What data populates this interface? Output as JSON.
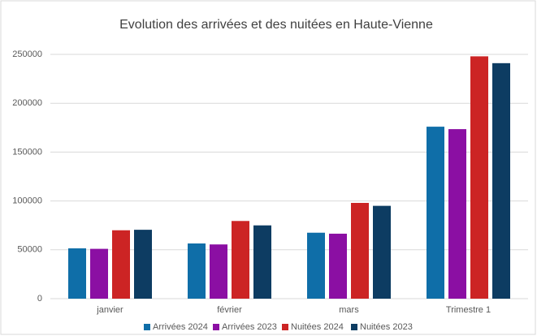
{
  "chart_data": {
    "type": "bar",
    "title": "Evolution des arrivées et des nuitées en Haute-Vienne",
    "categories": [
      "janvier",
      "février",
      "mars",
      "Trimestre 1"
    ],
    "series": [
      {
        "name": "Arrivées 2024",
        "color": "#0f6ea8",
        "values": [
          51500,
          56500,
          67500,
          176000
        ]
      },
      {
        "name": "Arrivées 2023",
        "color": "#8b0fa3",
        "values": [
          51000,
          55500,
          66500,
          173500
        ]
      },
      {
        "name": "Nuitées 2024",
        "color": "#cc2424",
        "values": [
          70000,
          79500,
          98000,
          248000
        ]
      },
      {
        "name": "Nuitées 2023",
        "color": "#0d3c62",
        "values": [
          70500,
          75000,
          95000,
          241000
        ]
      }
    ],
    "ylim": [
      0,
      250000
    ],
    "yticks": [
      0,
      50000,
      100000,
      150000,
      200000,
      250000
    ],
    "grid": true,
    "legend": "bottom"
  }
}
